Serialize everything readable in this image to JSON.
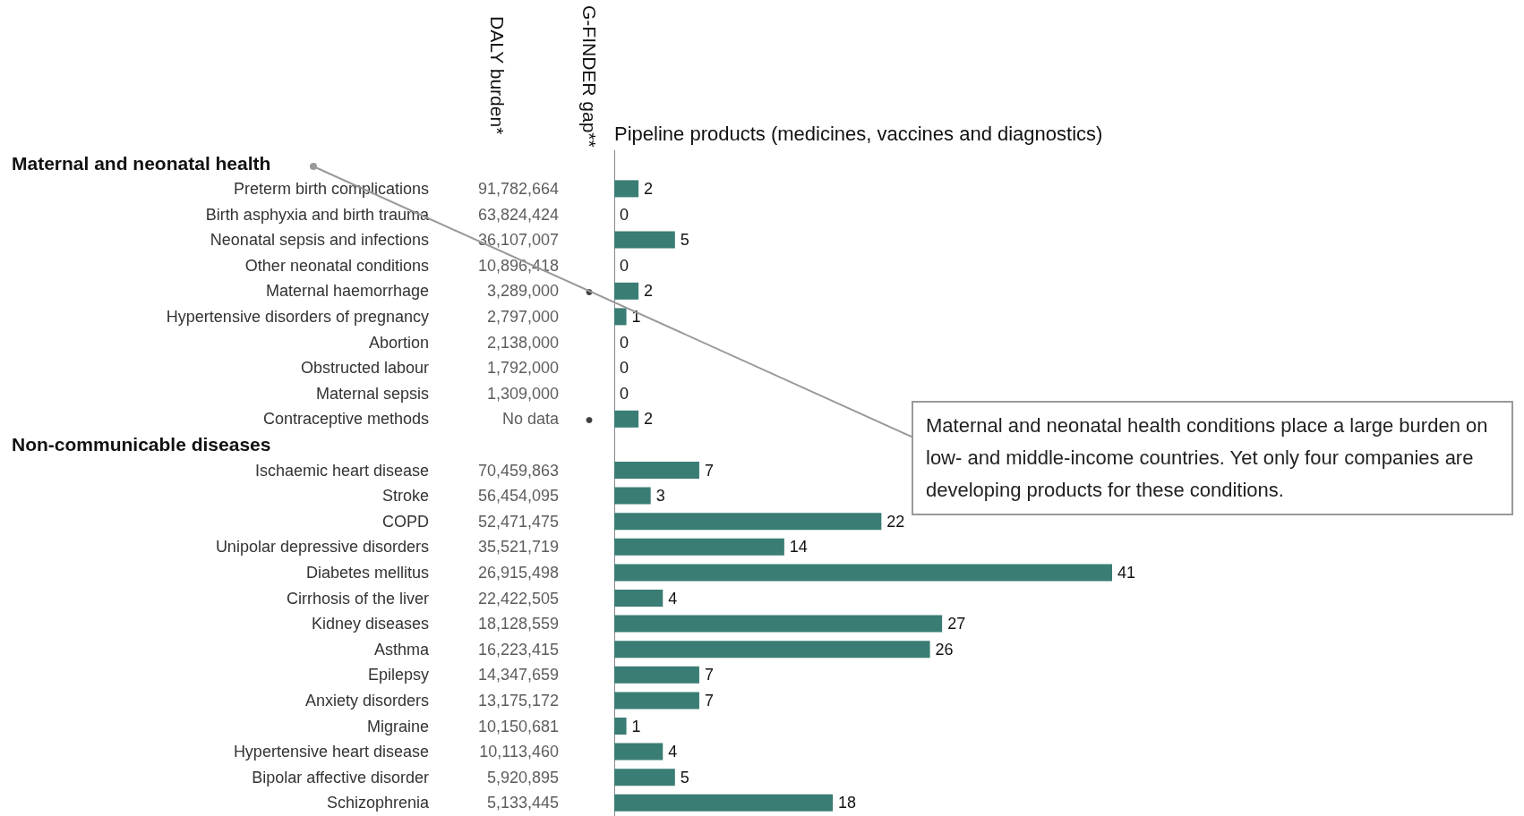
{
  "chart_data": {
    "type": "bar",
    "orientation": "horizontal",
    "xlabel": "Pipeline products (medicines, vaccines and diagnostics)",
    "data_labels": true,
    "grid": false,
    "categories": [
      null,
      "Preterm birth complications",
      "Birth asphyxia and birth trauma",
      "Neonatal sepsis and infections",
      "Other neonatal conditions",
      "Maternal haemorrhage",
      "Hypertensive disorders of pregnancy",
      "Abortion",
      "Obstructed labour",
      "Maternal sepsis",
      "Contraceptive methods",
      null,
      "Ischaemic heart disease",
      "Stroke",
      "COPD",
      "Unipolar depressive disorders",
      "Diabetes mellitus",
      "Cirrhosis of the liver",
      "Kidney diseases",
      "Asthma",
      "Epilepsy",
      "Anxiety disorders",
      "Migraine",
      "Hypertensive heart disease",
      "Bipolar affective disorder",
      "Schizophrenia"
    ],
    "series": [
      {
        "color": "#3a7d74",
        "values": [
          null,
          2,
          0,
          5,
          0,
          2,
          1,
          0,
          0,
          0,
          2,
          null,
          7,
          3,
          22,
          14,
          41,
          4,
          27,
          26,
          7,
          7,
          1,
          4,
          5,
          18
        ]
      },
      {
        "name": "DALY burden*",
        "type": "other",
        "values": [
          null,
          null,
          null,
          null,
          null,
          null,
          null,
          null,
          null,
          null,
          null,
          null,
          null,
          null,
          null,
          null,
          null,
          null,
          null,
          null,
          null,
          null,
          null,
          null,
          null,
          null
        ],
        "value_labels": [
          null,
          "91,782,664",
          "63,824,424",
          "36,107,007",
          "10,896,418",
          "3,289,000",
          "2,797,000",
          "2,138,000",
          "1,792,000",
          "1,309,000",
          "No data",
          null,
          "70,459,863",
          "56,454,095",
          "52,471,475",
          "35,521,719",
          "26,915,498",
          "22,422,505",
          "18,128,559",
          "16,223,415",
          "14,347,659",
          "13,175,172",
          "10,150,681",
          "10,113,460",
          "5,920,895",
          "5,133,445"
        ]
      },
      {
        "name": "G-FINDER gap**",
        "type": "other",
        "color": "#111111",
        "values": [
          null,
          null,
          null,
          null,
          null,
          null,
          null,
          null,
          null,
          null,
          null,
          null,
          null,
          null,
          null,
          null,
          null,
          null,
          null,
          null,
          null,
          null,
          null,
          null,
          null,
          null
        ],
        "value_labels": [
          null,
          null,
          null,
          null,
          null,
          "●",
          null,
          null,
          null,
          null,
          "●",
          null,
          null,
          null,
          null,
          null,
          null,
          null,
          null,
          null,
          null,
          null,
          null,
          null,
          null,
          null
        ]
      }
    ],
    "annotations": [
      "Maternal and neonatal health",
      "Non-communicable diseases",
      "Maternal and neonatal health conditions place a large burden on low- and middle-income countries. Yet only four companies are developing products for these conditions."
    ]
  }
}
